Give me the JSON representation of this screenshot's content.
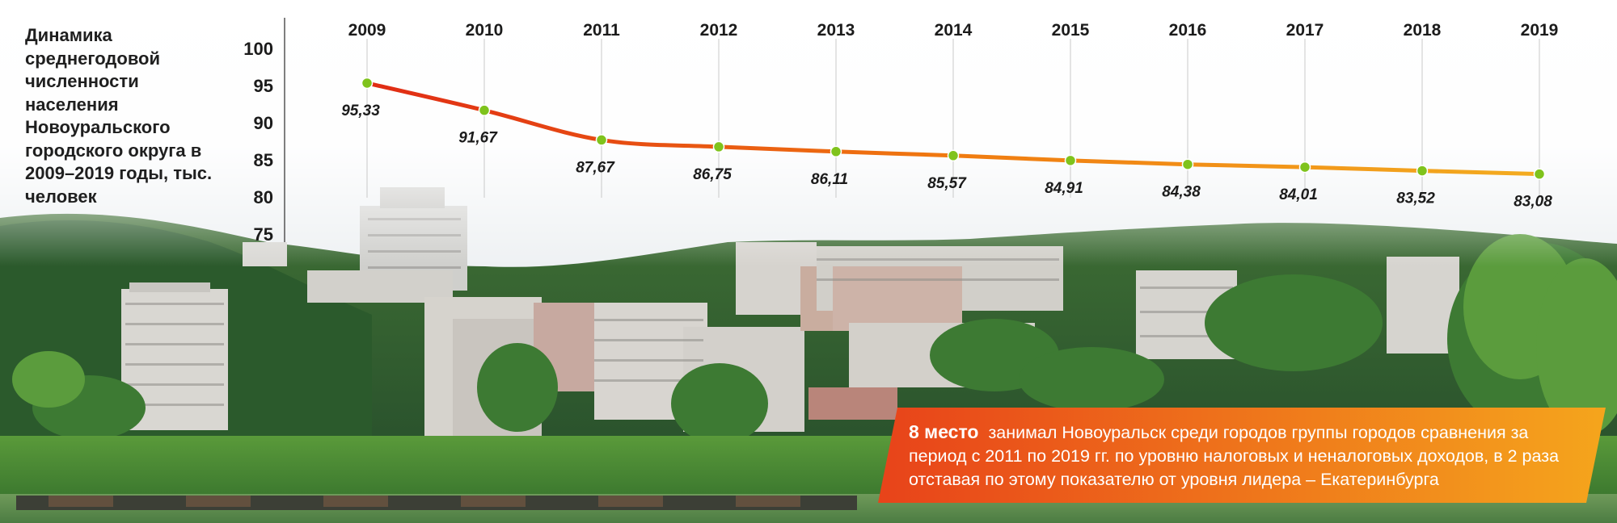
{
  "title": "Динамика среднегодовой численности населения Новоуральского городского округа в 2009–2019 годы, тыс. человек",
  "chart_data": {
    "type": "line",
    "title": "Динамика среднегодовой численности населения Новоуральского городского округа в 2009–2019 годы, тыс. человек",
    "categories": [
      "2009",
      "2010",
      "2011",
      "2012",
      "2013",
      "2014",
      "2015",
      "2016",
      "2017",
      "2018",
      "2019"
    ],
    "series": [
      {
        "values": [
          95.33,
          91.67,
          87.67,
          86.75,
          86.11,
          85.57,
          84.91,
          84.38,
          84.01,
          83.52,
          83.08
        ]
      }
    ],
    "data_labels": [
      "95,33",
      "91,67",
      "87,67",
      "86,75",
      "86,11",
      "85,57",
      "84,91",
      "84,38",
      "84,01",
      "83,52",
      "83,08"
    ],
    "yticks": [
      "100",
      "95",
      "90",
      "85",
      "80",
      "75"
    ],
    "ylim": [
      75,
      100
    ],
    "xaxis_position": "top",
    "grid": "vertical",
    "line_colors": [
      "#e02b14",
      "#f07a10",
      "#f3ac20"
    ],
    "point_color": "#7fc31c"
  },
  "callout": {
    "highlight": "8 место",
    "text": "занимал Новоуральск среди городов группы городов сравнения за период с 2011 по 2019 гг. по уровню налоговых и неналоговых доходов, в 2 раза отставая по этому показателю от уровня лидера – Екатеринбурга",
    "colors": [
      "#e8431a",
      "#f5a51c"
    ]
  }
}
